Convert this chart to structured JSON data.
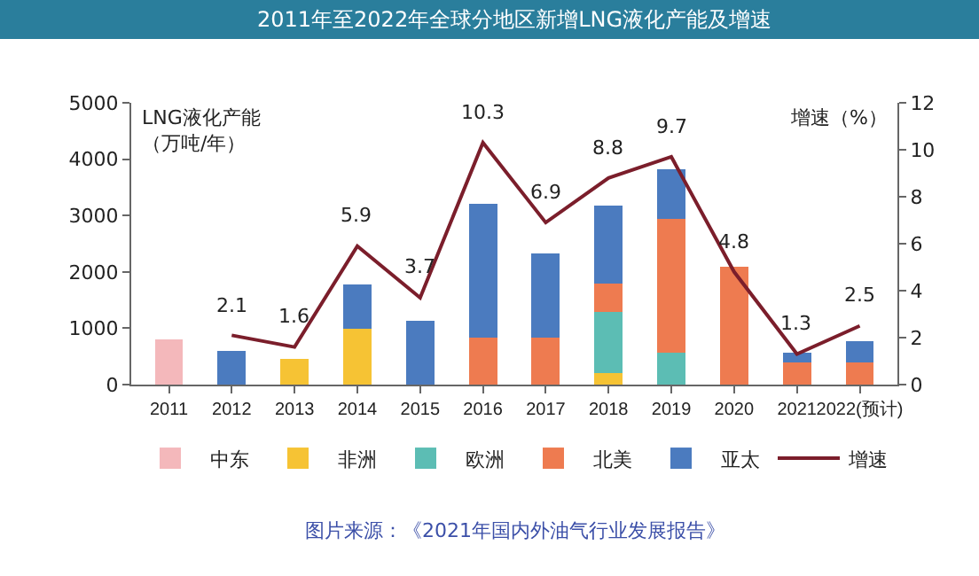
{
  "chart_data": {
    "type": "bar",
    "title": "2011年至2022年全球分地区新增LNG液化产能及增速",
    "ylabel": "LNG液化产能（万吨/年）",
    "y2label": "增速（%）",
    "annotations": [
      "图片来源：《2021年国内外油气行业发展报告》"
    ],
    "categories": [
      "2011",
      "2012",
      "2013",
      "2014",
      "2015",
      "2016",
      "2017",
      "2018",
      "2019",
      "2020",
      "2021",
      "2022(预计)"
    ],
    "stacked": true,
    "series": [
      {
        "name": "中东",
        "color": "#f4b8bb",
        "values": [
          800,
          null,
          null,
          null,
          null,
          null,
          null,
          null,
          null,
          null,
          null,
          null
        ]
      },
      {
        "name": "非洲",
        "color": "#f6c334",
        "values": [
          null,
          null,
          450,
          990,
          null,
          null,
          null,
          210,
          null,
          null,
          null,
          null
        ]
      },
      {
        "name": "欧洲",
        "color": "#5cbdb4",
        "values": [
          null,
          null,
          null,
          null,
          null,
          null,
          null,
          1080,
          560,
          null,
          null,
          null
        ]
      },
      {
        "name": "北美",
        "color": "#ee7b50",
        "values": [
          null,
          null,
          null,
          null,
          null,
          840,
          840,
          510,
          2380,
          2090,
          390,
          390
        ]
      },
      {
        "name": "亚太",
        "color": "#4b7bbf",
        "values": [
          null,
          590,
          null,
          780,
          1130,
          2370,
          1480,
          1380,
          880,
          null,
          180,
          380
        ]
      },
      {
        "name": "增速",
        "type": "line",
        "axis": "y2",
        "color": "#7b1e2b",
        "values": [
          null,
          2.1,
          1.6,
          5.9,
          3.7,
          10.3,
          6.9,
          8.8,
          9.7,
          4.8,
          1.3,
          2.5
        ],
        "value_labels": [
          null,
          "2.1",
          "1.6",
          "5.9",
          "3.7",
          "10.3",
          "6.9",
          "8.8",
          "9.7",
          "4.8",
          "1.3",
          "2.5"
        ]
      }
    ],
    "ylim": [
      0,
      5000
    ],
    "yticks": [
      0,
      1000,
      2000,
      3000,
      4000,
      5000
    ],
    "y2lim": [
      0,
      12
    ],
    "y2ticks": [
      0,
      2,
      4,
      6,
      8,
      10,
      12
    ],
    "legend": "bottom",
    "marker": "none",
    "line_style": "solid"
  }
}
